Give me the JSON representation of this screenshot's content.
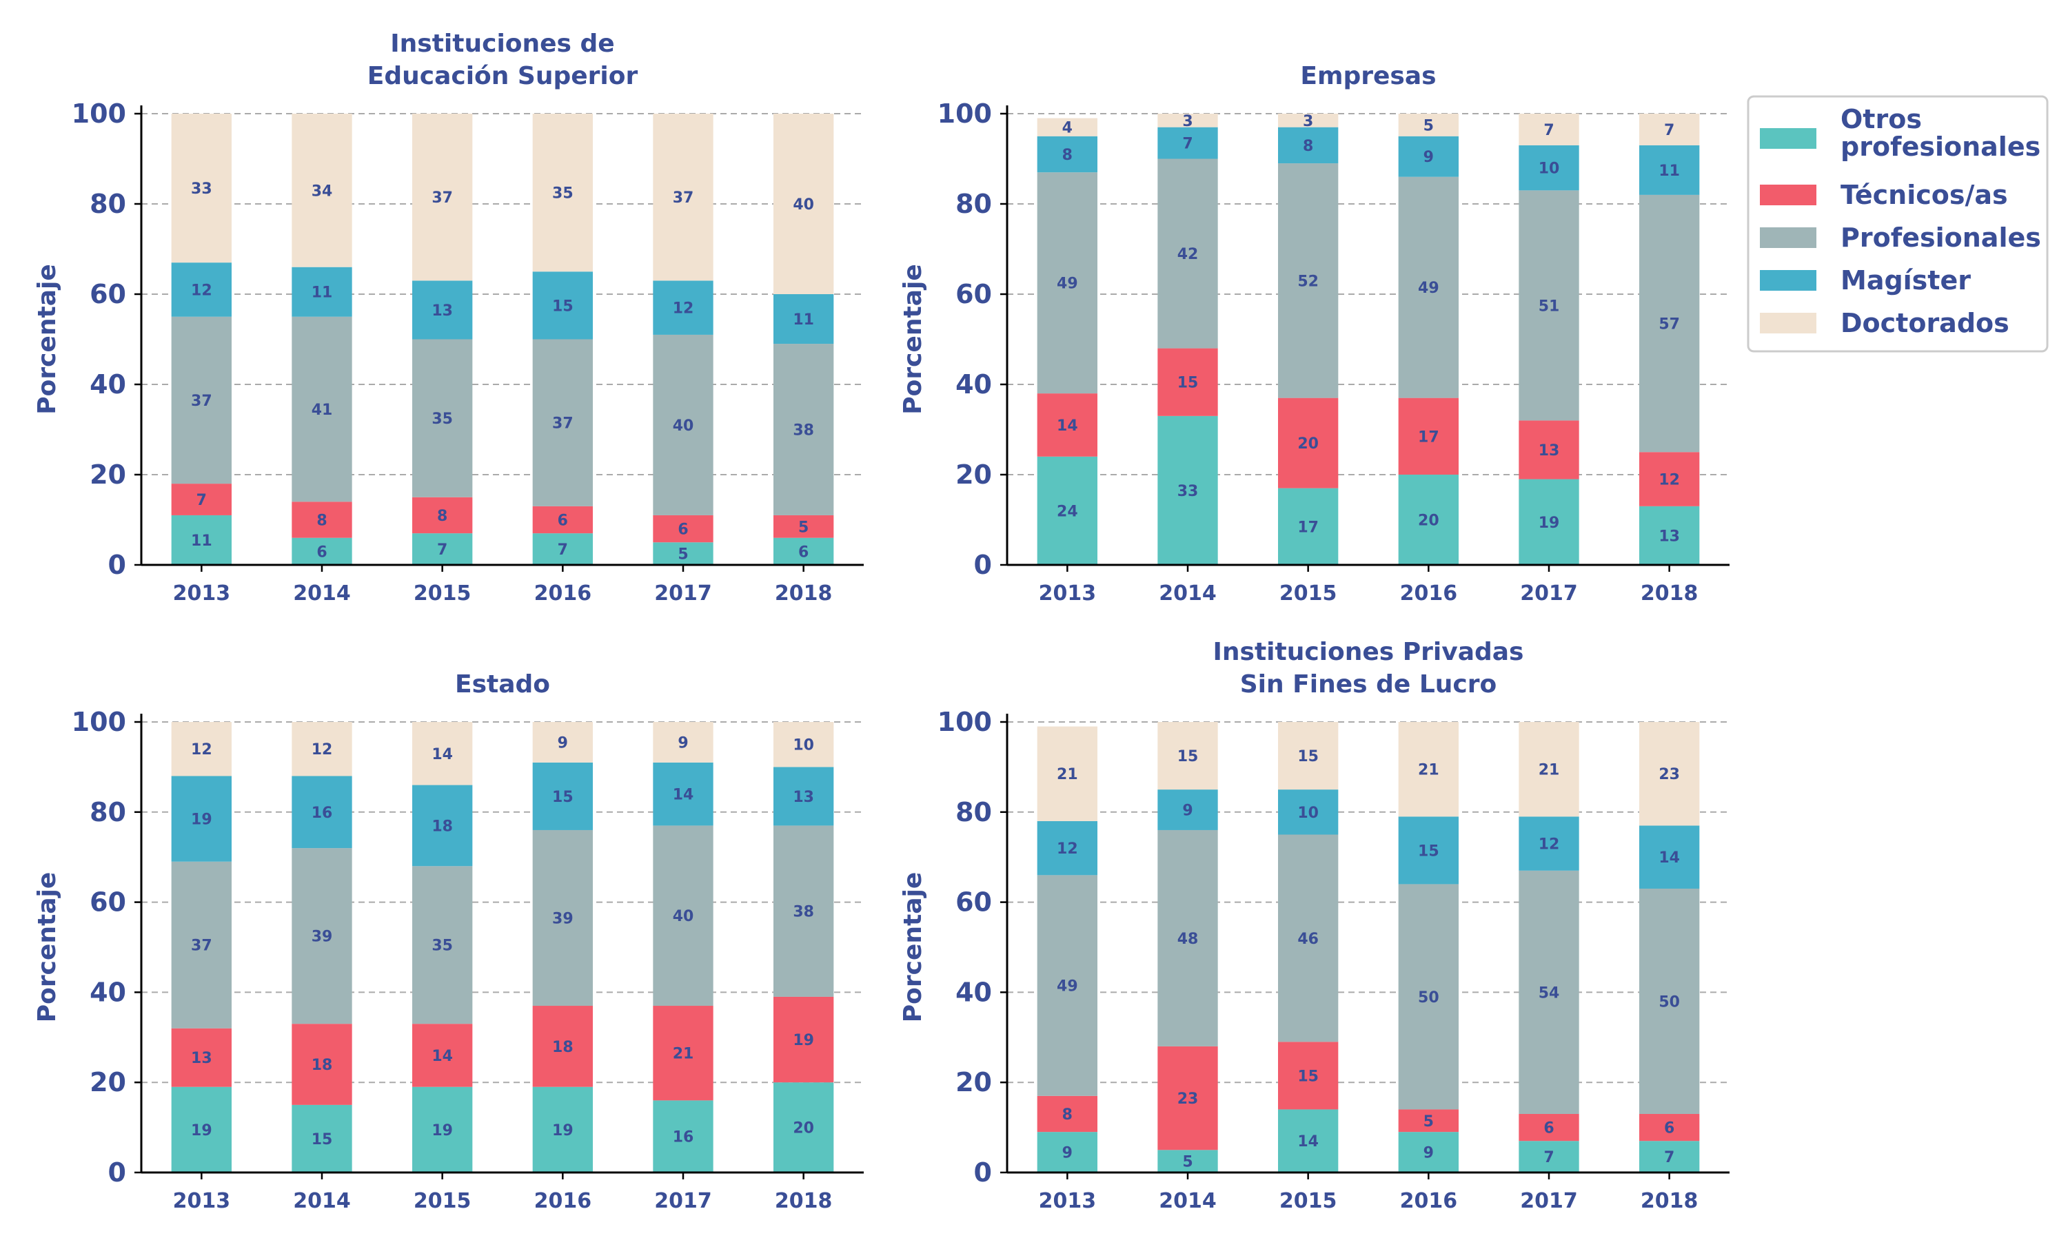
{
  "chart_data": [
    {
      "type": "bar",
      "stacked": true,
      "title": [
        "Instituciones de",
        "Educación Superior"
      ],
      "ylabel": "Porcentaje",
      "ylim": [
        0,
        100
      ],
      "yticks": [
        0,
        20,
        40,
        60,
        80,
        100
      ],
      "grid": true,
      "categories": [
        "2013",
        "2014",
        "2015",
        "2016",
        "2017",
        "2018"
      ],
      "series": [
        {
          "name": "Otros profesionales",
          "values": [
            11,
            6,
            7,
            7,
            5,
            6
          ]
        },
        {
          "name": "Técnicos/as",
          "values": [
            7,
            8,
            8,
            6,
            6,
            5
          ]
        },
        {
          "name": "Profesionales",
          "values": [
            37,
            41,
            35,
            37,
            40,
            38
          ]
        },
        {
          "name": "Magíster",
          "values": [
            12,
            11,
            13,
            15,
            12,
            11
          ]
        },
        {
          "name": "Doctorados",
          "values": [
            33,
            34,
            37,
            35,
            37,
            40
          ]
        }
      ]
    },
    {
      "type": "bar",
      "stacked": true,
      "title": [
        "Empresas"
      ],
      "ylabel": "Porcentaje",
      "ylim": [
        0,
        100
      ],
      "yticks": [
        0,
        20,
        40,
        60,
        80,
        100
      ],
      "grid": true,
      "categories": [
        "2013",
        "2014",
        "2015",
        "2016",
        "2017",
        "2018"
      ],
      "series": [
        {
          "name": "Otros profesionales",
          "values": [
            24,
            33,
            17,
            20,
            19,
            13
          ]
        },
        {
          "name": "Técnicos/as",
          "values": [
            14,
            15,
            20,
            17,
            13,
            12
          ]
        },
        {
          "name": "Profesionales",
          "values": [
            49,
            42,
            52,
            49,
            51,
            57
          ]
        },
        {
          "name": "Magíster",
          "values": [
            8,
            7,
            8,
            9,
            10,
            11
          ]
        },
        {
          "name": "Doctorados",
          "values": [
            4,
            3,
            3,
            5,
            7,
            7
          ]
        }
      ]
    },
    {
      "type": "bar",
      "stacked": true,
      "title": [
        "Estado"
      ],
      "ylabel": "Porcentaje",
      "ylim": [
        0,
        100
      ],
      "yticks": [
        0,
        20,
        40,
        60,
        80,
        100
      ],
      "grid": true,
      "categories": [
        "2013",
        "2014",
        "2015",
        "2016",
        "2017",
        "2018"
      ],
      "series": [
        {
          "name": "Otros profesionales",
          "values": [
            19,
            15,
            19,
            19,
            16,
            20
          ]
        },
        {
          "name": "Técnicos/as",
          "values": [
            13,
            18,
            14,
            18,
            21,
            19
          ]
        },
        {
          "name": "Profesionales",
          "values": [
            37,
            39,
            35,
            39,
            40,
            38
          ]
        },
        {
          "name": "Magíster",
          "values": [
            19,
            16,
            18,
            15,
            14,
            13
          ]
        },
        {
          "name": "Doctorados",
          "values": [
            12,
            12,
            14,
            9,
            9,
            10
          ]
        }
      ]
    },
    {
      "type": "bar",
      "stacked": true,
      "title": [
        "Instituciones Privadas",
        "Sin Fines de Lucro"
      ],
      "ylabel": "Porcentaje",
      "ylim": [
        0,
        100
      ],
      "yticks": [
        0,
        20,
        40,
        60,
        80,
        100
      ],
      "grid": true,
      "categories": [
        "2013",
        "2014",
        "2015",
        "2016",
        "2017",
        "2018"
      ],
      "series": [
        {
          "name": "Otros profesionales",
          "values": [
            9,
            5,
            14,
            9,
            7,
            7
          ]
        },
        {
          "name": "Técnicos/as",
          "values": [
            8,
            23,
            15,
            5,
            6,
            6
          ]
        },
        {
          "name": "Profesionales",
          "values": [
            49,
            48,
            46,
            50,
            54,
            50
          ]
        },
        {
          "name": "Magíster",
          "values": [
            12,
            9,
            10,
            15,
            12,
            14
          ]
        },
        {
          "name": "Doctorados",
          "values": [
            21,
            15,
            15,
            21,
            21,
            23
          ]
        }
      ]
    }
  ],
  "legend": {
    "placement": "right",
    "entries": [
      {
        "label": [
          "Otros",
          "profesionales"
        ],
        "color": "#5BC4BF"
      },
      {
        "label": [
          "Técnicos/as"
        ],
        "color": "#F25C6B"
      },
      {
        "label": [
          "Profesionales"
        ],
        "color": "#9FB5B7"
      },
      {
        "label": [
          "Magíster"
        ],
        "color": "#45B0CA"
      },
      {
        "label": [
          "Doctorados"
        ],
        "color": "#F1E2D1"
      }
    ]
  },
  "colors": {
    "series": [
      "#5BC4BF",
      "#F25C6B",
      "#9FB5B7",
      "#45B0CA",
      "#F1E2D1"
    ],
    "text": "#3A4E96",
    "grid": "#AAAAAA",
    "axis": "#000000"
  }
}
